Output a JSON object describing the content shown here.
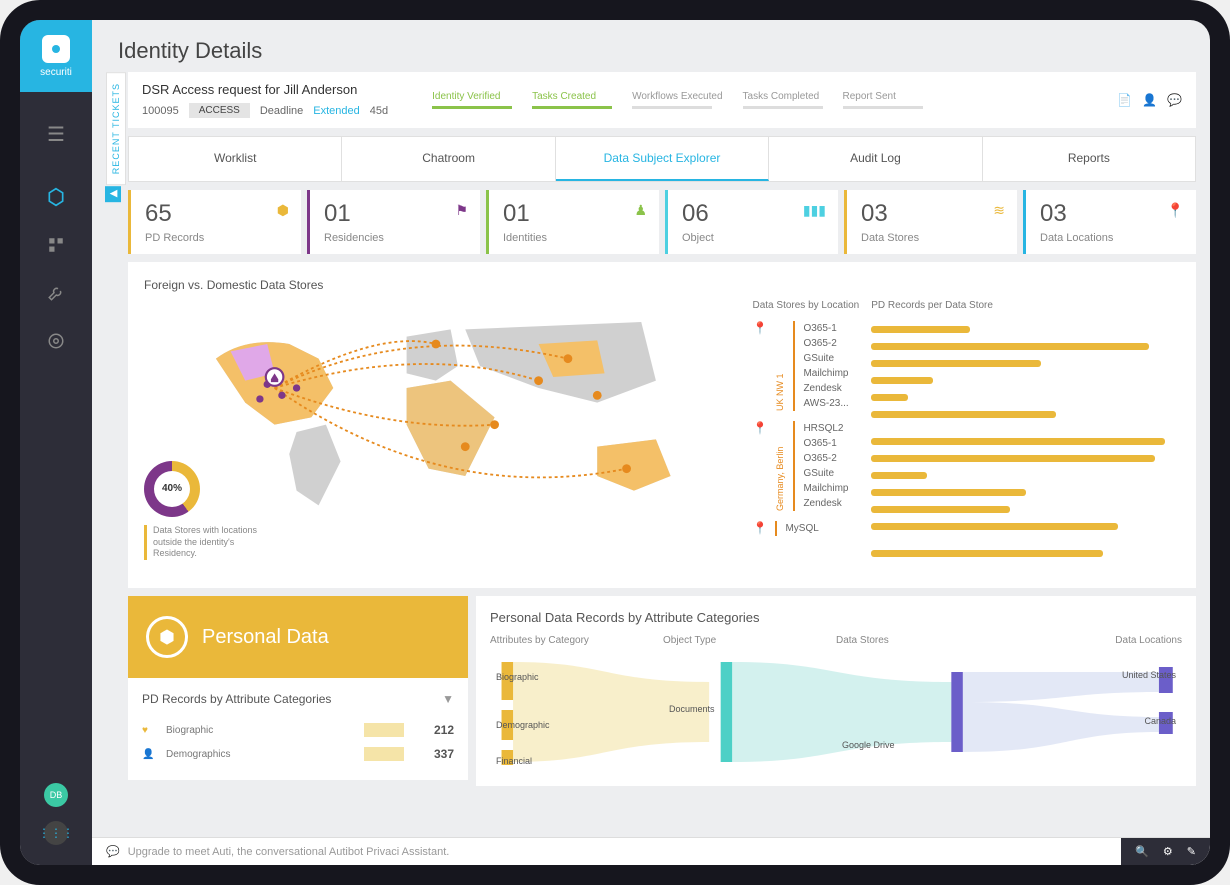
{
  "brand": "securiti",
  "page_title": "Identity Details",
  "sidebar": {
    "avatar_initials": "DB"
  },
  "recent_tickets_label": "RECENT TICKETS",
  "request": {
    "title": "DSR Access request for Jill Anderson",
    "id": "100095",
    "badge": "ACCESS",
    "deadline_label": "Deadline",
    "extended_label": "Extended",
    "days": "45d",
    "stages": [
      {
        "label": "Identity Verified",
        "state": "active"
      },
      {
        "label": "Tasks Created",
        "state": "active"
      },
      {
        "label": "Workflows Executed",
        "state": "pending"
      },
      {
        "label": "Tasks Completed",
        "state": "pending"
      },
      {
        "label": "Report Sent",
        "state": "pending"
      }
    ]
  },
  "tabs": [
    {
      "label": "Worklist"
    },
    {
      "label": "Chatroom"
    },
    {
      "label": "Data Subject Explorer",
      "active": true
    },
    {
      "label": "Audit Log"
    },
    {
      "label": "Reports"
    }
  ],
  "stats": [
    {
      "value": "65",
      "label": "PD Records",
      "color": "#eab83a",
      "icon": "⬢"
    },
    {
      "value": "01",
      "label": "Residencies",
      "color": "#7d3789",
      "icon": "⚑"
    },
    {
      "value": "01",
      "label": "Identities",
      "color": "#8bc34a",
      "icon": "♟"
    },
    {
      "value": "06",
      "label": "Object",
      "color": "#4dd0e1",
      "icon": "▮▮▮"
    },
    {
      "value": "03",
      "label": "Data Stores",
      "color": "#eab83a",
      "icon": "≋"
    },
    {
      "value": "03",
      "label": "Data Locations",
      "color": "#27b5e2",
      "icon": "📍"
    }
  ],
  "map": {
    "title": "Foreign vs. Domestic Data Stores",
    "donut_pct": "40%",
    "donut_caption": "Data Stores with locations outside the identity's Residency.",
    "stores_header": "Data Stores by Location",
    "bars_header": "PD Records per Data Store",
    "locations": [
      {
        "name": "UK NW 1",
        "stores": [
          "O365-1",
          "O365-2",
          "GSuite",
          "Mailchimp",
          "Zendesk",
          "AWS-23..."
        ],
        "bars": [
          32,
          90,
          55,
          20,
          12,
          60
        ]
      },
      {
        "name": "Germany, Berlin",
        "stores": [
          "HRSQL2",
          "O365-1",
          "O365-2",
          "GSuite",
          "Mailchimp",
          "Zendesk"
        ],
        "bars": [
          95,
          92,
          18,
          50,
          45,
          80
        ]
      },
      {
        "name": "",
        "stores": [
          "MySQL"
        ],
        "bars": [
          75
        ]
      }
    ]
  },
  "pd": {
    "title": "Personal Data",
    "subtitle": "PD Records by Attribute Categories",
    "rows": [
      {
        "icon": "♥",
        "label": "Biographic",
        "value": "212"
      },
      {
        "icon": "👤",
        "label": "Demographics",
        "value": "337"
      }
    ]
  },
  "sankey": {
    "title": "Personal Data Records by Attribute Categories",
    "headers": [
      "Attributes by Category",
      "Object Type",
      "Data Stores",
      "Data Locations"
    ],
    "col1": [
      "Biographic",
      "Demographic",
      "Financial"
    ],
    "col2": [
      "Documents"
    ],
    "col3": [
      "Google Drive"
    ],
    "col4": [
      "United States",
      "Canada"
    ]
  },
  "footer": {
    "message": "Upgrade to meet Auti, the conversational Autibot Privaci Assistant."
  }
}
